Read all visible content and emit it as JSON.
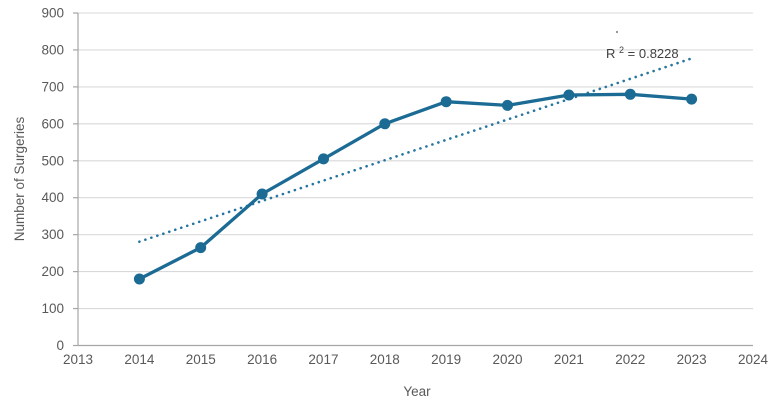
{
  "chart_data": {
    "type": "line",
    "title": "",
    "xlabel": "Year",
    "ylabel": "Number of Surgeries",
    "x": [
      2014,
      2015,
      2016,
      2017,
      2018,
      2019,
      2020,
      2021,
      2022,
      2023
    ],
    "series": [
      {
        "name": "Number of Surgeries",
        "values": [
          180,
          265,
          410,
          505,
          600,
          660,
          650,
          678,
          680,
          667
        ]
      }
    ],
    "xlim": [
      2013,
      2024
    ],
    "ylim": [
      0,
      900
    ],
    "x_ticks": [
      2013,
      2014,
      2015,
      2016,
      2017,
      2018,
      2019,
      2020,
      2021,
      2022,
      2023,
      2024
    ],
    "y_ticks": [
      0,
      100,
      200,
      300,
      400,
      500,
      600,
      700,
      800,
      900
    ],
    "grid": "horizontal",
    "legend": "none",
    "trendline": {
      "type": "linear",
      "style": "dotted",
      "x_start": 2014,
      "x_end": 2023,
      "y_start": 281,
      "y_end": 777,
      "r_squared": 0.8228
    },
    "annotation": {
      "r2_prefix": "R",
      "r2_sup": "2",
      "r2_rest": " = 0.8228"
    }
  },
  "colors": {
    "series": "#1b6b94",
    "trendline": "#2676a0",
    "gridline": "#d9d9d9",
    "axis_line": "#a6a6a6",
    "tick_label": "#595959",
    "axis_title": "#595959",
    "r2_text": "#404040",
    "stray_dot": "#8c8c8c",
    "background": "#ffffff"
  }
}
